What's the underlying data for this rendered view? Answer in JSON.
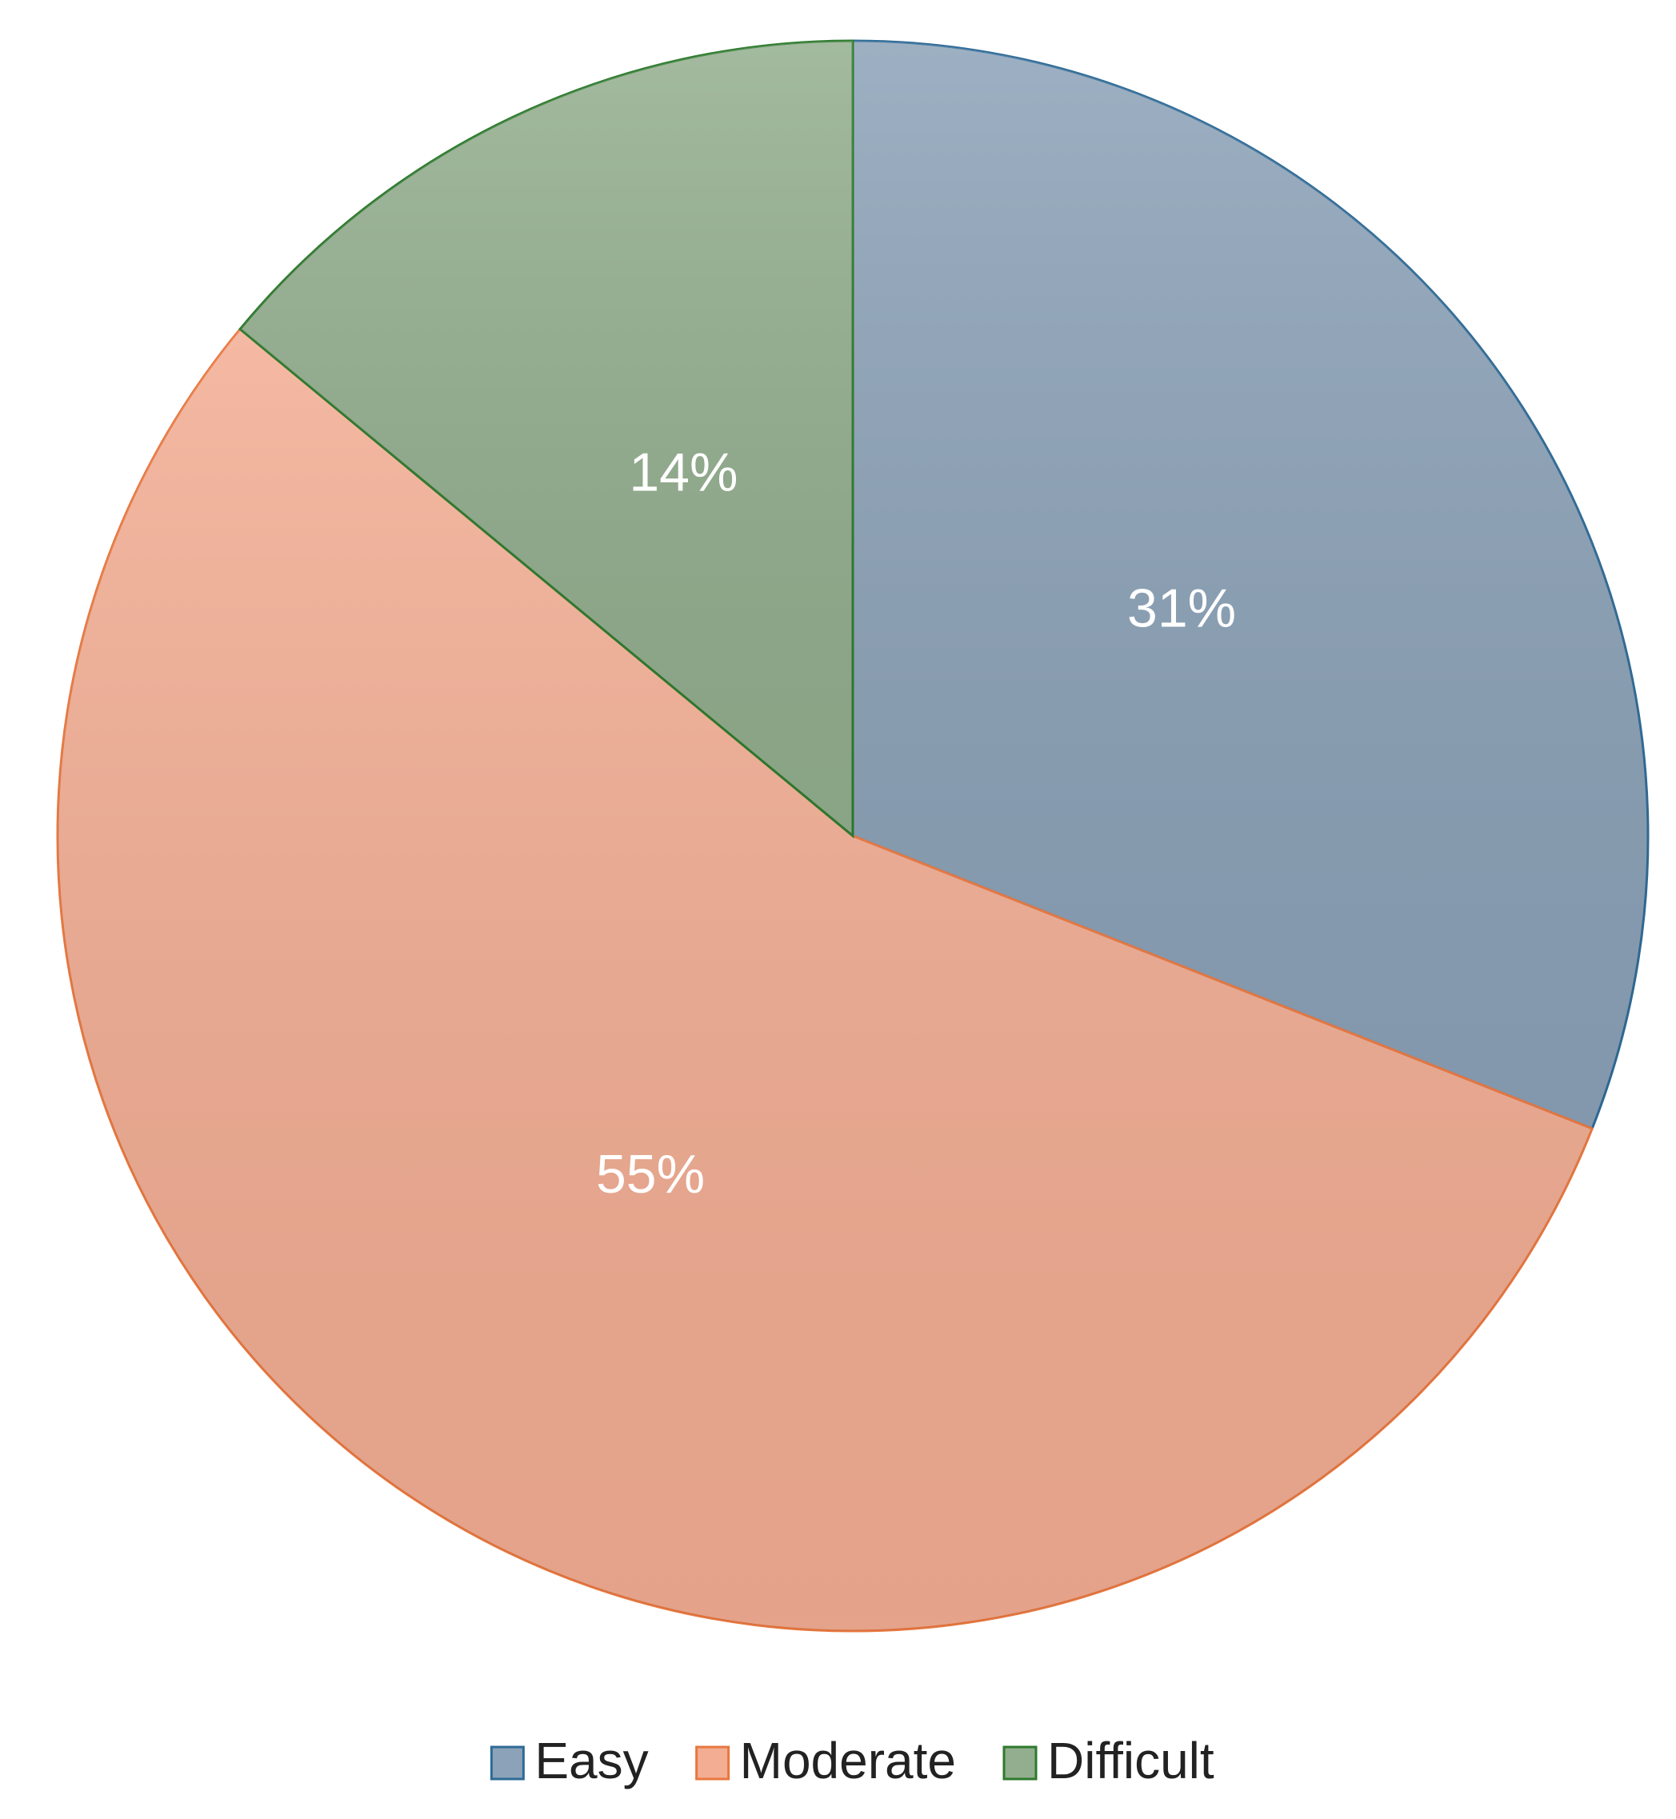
{
  "chart_data": {
    "type": "pie",
    "categories": [
      "Easy",
      "Moderate",
      "Difficult"
    ],
    "values": [
      31,
      55,
      14
    ],
    "value_labels": [
      "31%",
      "55%",
      "14%"
    ],
    "colors": [
      "#8ca2b8",
      "#f3ad93",
      "#93ae8e"
    ],
    "edge_colors": [
      "#2e6a96",
      "#e8773f",
      "#2e7a2e"
    ],
    "legend": "bottom"
  }
}
